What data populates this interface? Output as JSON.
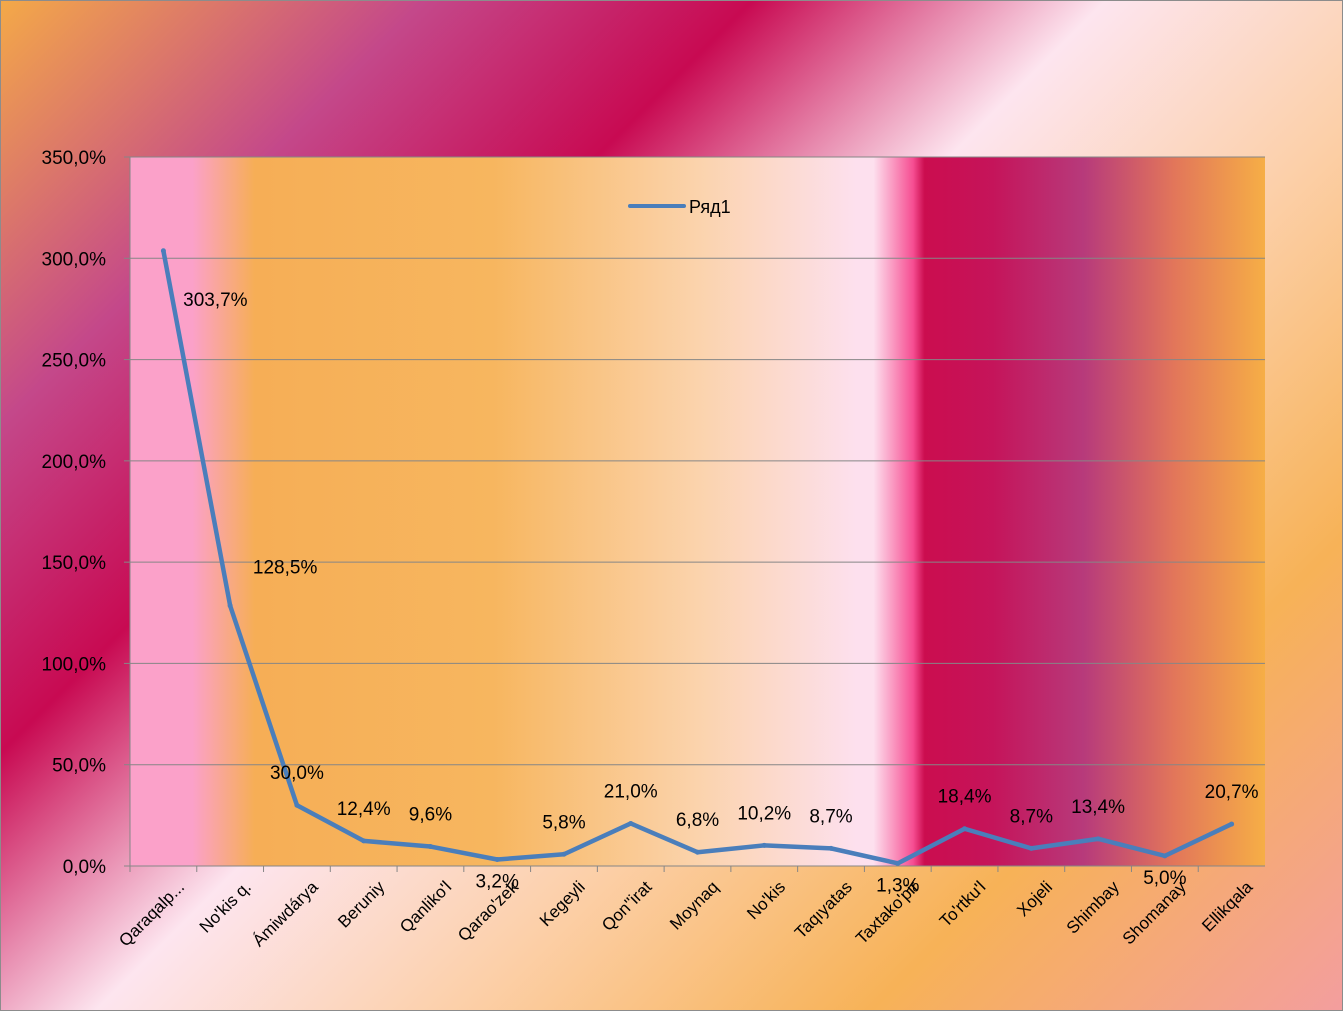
{
  "chart_data": {
    "type": "line",
    "categories": [
      "Qaraqalp...",
      "No'kis q.",
      "Ámiwdárya",
      "Beruniy",
      "Qanliko'l",
      "Qarao'zek",
      "Kegeyli",
      "Qon''irat",
      "Moynaq",
      "No'kis",
      "Taqıyatas",
      "Taxtako'pir",
      "To'rtku'l",
      "Xojeli",
      "Shimbay",
      "Shomanay",
      "Ellikqala"
    ],
    "series": [
      {
        "name": "Ряд1",
        "values": [
          303.7,
          128.5,
          30.0,
          12.4,
          9.6,
          3.2,
          5.8,
          21.0,
          6.8,
          10.2,
          8.7,
          1.3,
          18.4,
          8.7,
          13.4,
          5.0,
          20.7
        ],
        "labels": [
          "303,7%",
          "128,5%",
          "30,0%",
          "12,4%",
          "9,6%",
          "3,2%",
          "5,8%",
          "21,0%",
          "6,8%",
          "10,2%",
          "8,7%",
          "1,3%",
          "18,4%",
          "8,7%",
          "13,4%",
          "5,0%",
          "20,7%"
        ],
        "color": "#4a7ebb"
      }
    ],
    "y_ticks": [
      "0,0%",
      "50,0%",
      "100,0%",
      "150,0%",
      "200,0%",
      "250,0%",
      "300,0%",
      "350,0%"
    ],
    "ylim": [
      0,
      350
    ],
    "grid": true,
    "legend_position": "top-center",
    "title": "",
    "xlabel": "",
    "ylabel": ""
  }
}
